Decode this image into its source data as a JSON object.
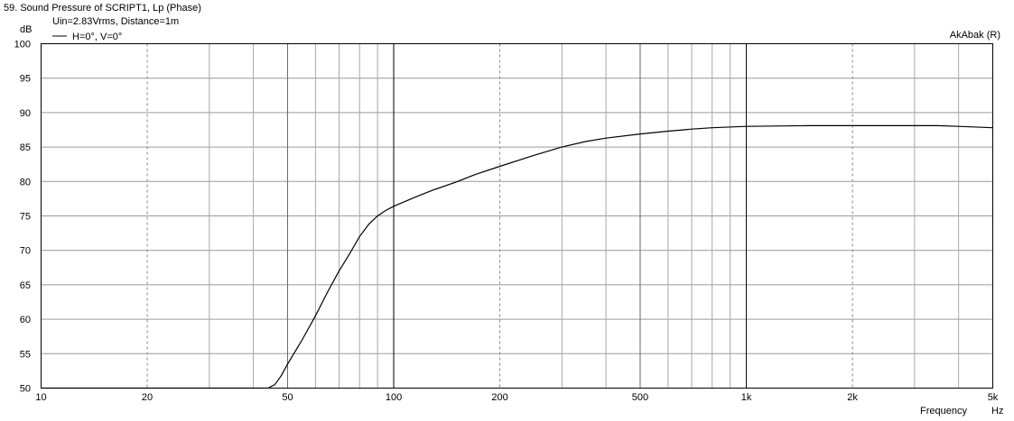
{
  "window_title": "59. Sound Pressure of SCRIPT1, Lp (Phase)",
  "watermark": "AkAbak (R)",
  "chart_data": {
    "type": "line",
    "title": "59. Sound Pressure of SCRIPT1, Lp (Phase)",
    "subtitle": "Uin=2.83Vrms, Distance=1m",
    "ylabel": "dB",
    "xlabel": "Frequency",
    "xunit": "Hz",
    "xscale": "log",
    "xlim": [
      10,
      5000
    ],
    "ylim": [
      50,
      100
    ],
    "grid": true,
    "legend_position": "top-left",
    "x_ticks": [
      {
        "value": 10,
        "label": "10"
      },
      {
        "value": 20,
        "label": "20"
      },
      {
        "value": 50,
        "label": "50"
      },
      {
        "value": 100,
        "label": "100"
      },
      {
        "value": 200,
        "label": "200"
      },
      {
        "value": 500,
        "label": "500"
      },
      {
        "value": 1000,
        "label": "1k"
      },
      {
        "value": 2000,
        "label": "2k"
      },
      {
        "value": 5000,
        "label": "5k"
      }
    ],
    "y_ticks": [
      {
        "value": 100,
        "label": "100"
      },
      {
        "value": 95,
        "label": "95"
      },
      {
        "value": 90,
        "label": "90"
      },
      {
        "value": 85,
        "label": "85"
      },
      {
        "value": 80,
        "label": "80"
      },
      {
        "value": 75,
        "label": "75"
      },
      {
        "value": 70,
        "label": "70"
      },
      {
        "value": 65,
        "label": "65"
      },
      {
        "value": 60,
        "label": "60"
      },
      {
        "value": 55,
        "label": "55"
      },
      {
        "value": 50,
        "label": "50"
      }
    ],
    "series": [
      {
        "name": "H=0°, V=0°",
        "color": "#000000",
        "x": [
          10,
          20,
          30,
          40,
          44,
          46,
          48,
          50,
          55,
          60,
          65,
          70,
          75,
          80,
          85,
          90,
          95,
          100,
          110,
          120,
          130,
          150,
          170,
          200,
          250,
          300,
          350,
          400,
          500,
          600,
          700,
          800,
          1000,
          1500,
          2000,
          3000,
          3500,
          4000,
          5000
        ],
        "values": [
          50,
          50,
          50,
          50,
          50,
          50.5,
          51.8,
          53.5,
          57.0,
          60.5,
          64.0,
          67.0,
          69.5,
          72.0,
          73.8,
          75.0,
          75.8,
          76.4,
          77.3,
          78.1,
          78.8,
          79.9,
          81.0,
          82.2,
          83.8,
          85.0,
          85.8,
          86.3,
          86.9,
          87.3,
          87.6,
          87.8,
          88.0,
          88.1,
          88.1,
          88.1,
          88.1,
          88.0,
          87.8
        ]
      }
    ]
  }
}
